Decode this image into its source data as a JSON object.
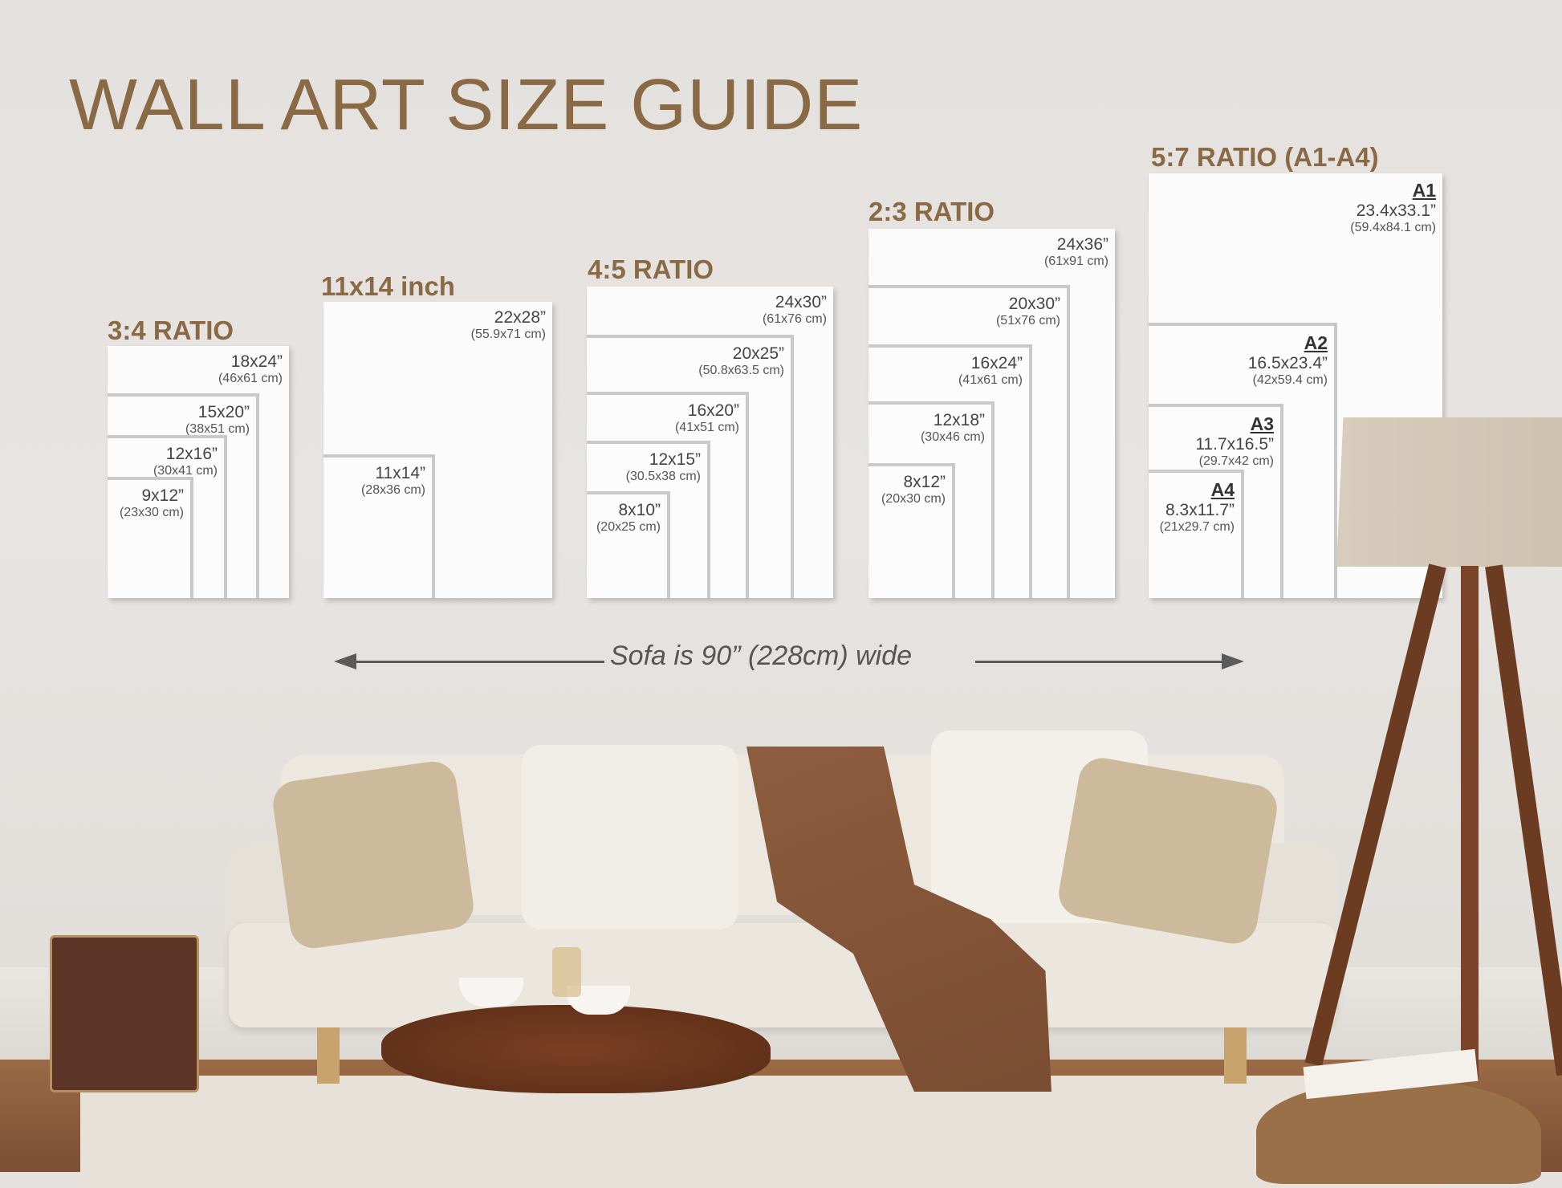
{
  "title": "WALL ART SIZE GUIDE",
  "groups": [
    {
      "heading": "3:4 RATIO",
      "sizes": [
        {
          "inch": "18x24”",
          "cm": "(46x61 cm)"
        },
        {
          "inch": "15x20”",
          "cm": "(38x51 cm)"
        },
        {
          "inch": "12x16”",
          "cm": "(30x41 cm)"
        },
        {
          "inch": "9x12”",
          "cm": "(23x30 cm)"
        }
      ]
    },
    {
      "heading": "11x14 inch",
      "sizes": [
        {
          "inch": "22x28”",
          "cm": "(55.9x71 cm)"
        },
        {
          "inch": "11x14”",
          "cm": "(28x36 cm)"
        }
      ]
    },
    {
      "heading": "4:5 RATIO",
      "sizes": [
        {
          "inch": "24x30”",
          "cm": "(61x76 cm)"
        },
        {
          "inch": "20x25”",
          "cm": "(50.8x63.5 cm)"
        },
        {
          "inch": "16x20”",
          "cm": "(41x51 cm)"
        },
        {
          "inch": "12x15”",
          "cm": "(30.5x38 cm)"
        },
        {
          "inch": "8x10”",
          "cm": "(20x25 cm)"
        }
      ]
    },
    {
      "heading": "2:3 RATIO",
      "sizes": [
        {
          "inch": "24x36”",
          "cm": "(61x91 cm)"
        },
        {
          "inch": "20x30”",
          "cm": "(51x76 cm)"
        },
        {
          "inch": "16x24”",
          "cm": "(41x61 cm)"
        },
        {
          "inch": "12x18”",
          "cm": "(30x46 cm)"
        },
        {
          "inch": "8x12”",
          "cm": "(20x30 cm)"
        }
      ]
    },
    {
      "heading": "5:7 RATIO (A1-A4)",
      "sizes": [
        {
          "paper": "A1",
          "inch": "23.4x33.1”",
          "cm": "(59.4x84.1 cm)"
        },
        {
          "paper": "A2",
          "inch": "16.5x23.4”",
          "cm": "(42x59.4 cm)"
        },
        {
          "paper": "A3",
          "inch": "11.7x16.5”",
          "cm": "(29.7x42 cm)"
        },
        {
          "paper": "A4",
          "inch": "8.3x11.7”",
          "cm": "(21x29.7 cm)"
        }
      ]
    }
  ],
  "sofa_note": "Sofa is 90” (228cm) wide",
  "colors": {
    "heading": "#8a6a45",
    "frame_border": "#c9c9c9",
    "sofa": "#e9e4dc",
    "throw": "#8a5a3c"
  }
}
